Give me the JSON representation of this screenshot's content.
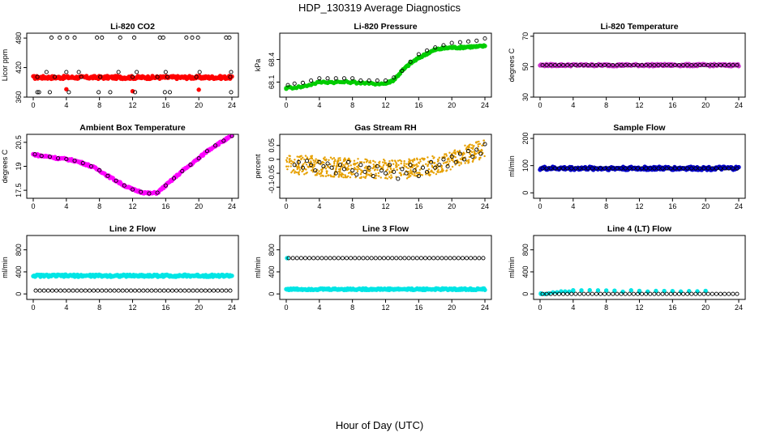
{
  "figure": {
    "title": "HDP_130319  Average Diagnostics",
    "xlabel": "Hour of Day (UTC)"
  },
  "chart_data": [
    {
      "type": "scatter",
      "title": "Li-820 CO2",
      "ylabel": "Licor ppm",
      "xlim": [
        0,
        24
      ],
      "ylim": [
        360,
        490
      ],
      "xticks": [
        0,
        4,
        8,
        12,
        16,
        20,
        24
      ],
      "yticks": [
        360,
        420,
        480
      ],
      "series": [
        {
          "color": "#ff0000",
          "marker": "filled",
          "band": [
            0,
            24,
            397,
            403
          ],
          "x": [
            4.0,
            12.0,
            20.0
          ],
          "y": [
            376,
            372,
            375
          ]
        },
        {
          "color": "#000000",
          "marker": "open",
          "x": [
            0.5,
            2.2,
            3.2,
            4.1,
            5.0,
            7.7,
            8.3,
            10.5,
            12.2,
            15.3,
            15.7,
            18.5,
            19.2,
            19.9,
            23.3,
            23.7,
            0.7,
            2.0,
            4.3,
            7.9,
            9.3,
            12.3,
            15.9,
            16.5,
            23.9,
            0.5,
            2.6,
            5.8,
            8.1,
            12.0,
            15.0,
            16.2,
            19.7,
            23.8,
            1.6,
            4.0,
            5.5,
            10.3,
            12.5,
            16.0,
            20.1,
            23.9
          ],
          "y": [
            370,
            481,
            481,
            481,
            481,
            481,
            481,
            481,
            481,
            481,
            481,
            481,
            481,
            481,
            481,
            481,
            370,
            370,
            370,
            370,
            370,
            370,
            370,
            370,
            370,
            401,
            401,
            401,
            401,
            401,
            401,
            401,
            401,
            401,
            411,
            411,
            411,
            411,
            411,
            411,
            411,
            411
          ]
        }
      ]
    },
    {
      "type": "scatter",
      "title": "Li-820 Pressure",
      "ylabel": "kPa",
      "xlim": [
        0,
        24
      ],
      "ylim": [
        67.9,
        68.75
      ],
      "xticks": [
        0,
        4,
        8,
        12,
        16,
        20,
        24
      ],
      "yticks": [
        68.1,
        68.4
      ],
      "series": [
        {
          "color": "#00cc00",
          "marker": "filled",
          "x": [
            0,
            2,
            4,
            6,
            8,
            10,
            12,
            13,
            14,
            15,
            16,
            17,
            18,
            19,
            20,
            21,
            22,
            23,
            24
          ],
          "y": [
            68.02,
            68.04,
            68.1,
            68.1,
            68.1,
            68.08,
            68.08,
            68.13,
            68.25,
            68.35,
            68.42,
            68.48,
            68.53,
            68.55,
            68.56,
            68.56,
            68.57,
            68.57,
            68.58
          ]
        },
        {
          "color": "#000000",
          "marker": "open",
          "x": [
            0.2,
            1,
            2,
            3,
            4,
            5,
            6,
            7,
            8,
            9,
            10,
            11,
            12,
            13,
            14,
            15,
            16,
            17,
            18,
            19,
            20,
            21,
            22,
            23,
            24
          ],
          "y": [
            68.06,
            68.08,
            68.09,
            68.12,
            68.15,
            68.15,
            68.15,
            68.15,
            68.15,
            68.12,
            68.12,
            68.12,
            68.12,
            68.16,
            68.25,
            68.37,
            68.47,
            68.52,
            68.56,
            68.59,
            68.62,
            68.63,
            68.64,
            68.65,
            68.68
          ]
        }
      ]
    },
    {
      "type": "scatter",
      "title": "Li-820 Temperature",
      "ylabel": "degrees C",
      "xlim": [
        0,
        24
      ],
      "ylim": [
        30,
        72
      ],
      "xticks": [
        0,
        4,
        8,
        12,
        16,
        20,
        24
      ],
      "yticks": [
        30,
        50,
        70
      ],
      "series": [
        {
          "color": "#cc33cc",
          "marker": "filled",
          "band": [
            0,
            24,
            50.3,
            51.7
          ],
          "x": [
            0.1
          ],
          "y": [
            51
          ]
        },
        {
          "color": "#000000",
          "marker": "open",
          "line_y": 51,
          "x0": 0.3,
          "x1": 24,
          "step": 0.5
        }
      ]
    },
    {
      "type": "scatter",
      "title": "Ambient Box Temperature",
      "ylabel": "degrees C",
      "xlim": [
        0,
        24
      ],
      "ylim": [
        17.0,
        21.0
      ],
      "xticks": [
        0,
        4,
        8,
        12,
        16,
        20,
        24
      ],
      "yticks": [
        17.5,
        19.0,
        20.5
      ],
      "series": [
        {
          "color": "#ff00ff",
          "marker": "filled",
          "x": [
            0,
            1,
            2,
            3,
            4,
            5,
            6,
            7,
            8,
            9,
            10,
            11,
            12,
            13,
            14,
            15,
            16,
            17,
            18,
            19,
            20,
            21,
            22,
            23,
            24
          ],
          "y": [
            19.75,
            19.65,
            19.6,
            19.5,
            19.45,
            19.35,
            19.2,
            19.0,
            18.75,
            18.4,
            18.1,
            17.8,
            17.55,
            17.4,
            17.3,
            17.35,
            17.8,
            18.25,
            18.7,
            19.1,
            19.5,
            19.95,
            20.3,
            20.6,
            20.9
          ]
        },
        {
          "color": "#000000",
          "marker": "open",
          "x": [
            0.2,
            1,
            2,
            3,
            4,
            5,
            6,
            7,
            8,
            9,
            10,
            11,
            12,
            13,
            14,
            15,
            16,
            17,
            18,
            19,
            20,
            21,
            22,
            23,
            24
          ],
          "y": [
            19.75,
            19.65,
            19.6,
            19.5,
            19.45,
            19.35,
            19.2,
            19.0,
            18.75,
            18.4,
            18.1,
            17.8,
            17.55,
            17.4,
            17.3,
            17.35,
            17.8,
            18.25,
            18.7,
            19.1,
            19.5,
            19.95,
            20.3,
            20.6,
            20.9
          ]
        }
      ]
    },
    {
      "type": "scatter",
      "title": "Gas Stream RH",
      "ylabel": "percent",
      "xlim": [
        0,
        24
      ],
      "ylim": [
        -0.14,
        0.09
      ],
      "xticks": [
        0,
        4,
        8,
        12,
        16,
        20,
        24
      ],
      "yticks": [
        -0.1,
        -0.05,
        0.0,
        0.05
      ],
      "series": [
        {
          "color": "#e6a000",
          "marker": "filled",
          "band_curve": true,
          "x": [
            0,
            2,
            4,
            6,
            8,
            10,
            12,
            14,
            16,
            18,
            20,
            22,
            24
          ],
          "y": [
            -0.02,
            -0.02,
            -0.025,
            -0.03,
            -0.03,
            -0.035,
            -0.035,
            -0.035,
            -0.03,
            -0.02,
            -0.005,
            0.02,
            0.04
          ],
          "spread": 0.035
        },
        {
          "color": "#000000",
          "marker": "open",
          "x": [
            1,
            1.5,
            2,
            2.5,
            3,
            3.5,
            4,
            4.5,
            5,
            5.5,
            6,
            6.5,
            7,
            7.5,
            8,
            8.5,
            9,
            9.5,
            10,
            10.5,
            11,
            11.5,
            12,
            12.5,
            13,
            13.5,
            14,
            14.5,
            15,
            15.5,
            16,
            16.5,
            17,
            17.5,
            18,
            18.5,
            19,
            19.5,
            20,
            20.5,
            21,
            21.5,
            22,
            22.5,
            23,
            23.5,
            24
          ],
          "y": [
            -0.02,
            -0.01,
            -0.03,
            -0.005,
            -0.02,
            -0.04,
            -0.01,
            -0.025,
            -0.015,
            -0.03,
            -0.05,
            -0.02,
            -0.035,
            -0.01,
            -0.04,
            -0.055,
            -0.02,
            -0.045,
            -0.03,
            -0.06,
            -0.025,
            -0.04,
            -0.05,
            -0.02,
            -0.045,
            -0.07,
            -0.035,
            -0.05,
            -0.02,
            -0.04,
            -0.06,
            -0.03,
            -0.045,
            -0.01,
            -0.03,
            -0.02,
            0.0,
            -0.025,
            0.01,
            -0.01,
            0.02,
            0.0,
            0.03,
            0.01,
            0.035,
            0.02,
            0.055
          ]
        }
      ]
    },
    {
      "type": "scatter",
      "title": "Sample Flow",
      "ylabel": "ml/min",
      "xlim": [
        0,
        24
      ],
      "ylim": [
        -20,
        215
      ],
      "xticks": [
        0,
        4,
        8,
        12,
        16,
        20,
        24
      ],
      "yticks": [
        0,
        100,
        200
      ],
      "series": [
        {
          "color": "#0000cc",
          "marker": "filled",
          "band": [
            0,
            24,
            84,
            96
          ],
          "x": [
            0.1
          ],
          "y": [
            90
          ]
        },
        {
          "color": "#000000",
          "marker": "open",
          "line_y": 90,
          "x0": 0.3,
          "x1": 24,
          "step": 0.5
        }
      ]
    },
    {
      "type": "scatter",
      "title": "Line 2 Flow",
      "ylabel": "ml/min",
      "xlim": [
        0,
        24
      ],
      "ylim": [
        -100,
        1060
      ],
      "xticks": [
        0,
        4,
        8,
        12,
        16,
        20,
        24
      ],
      "yticks": [
        0,
        400,
        800
      ],
      "series": [
        {
          "color": "#00e5e5",
          "marker": "filled",
          "band": [
            0,
            24,
            310,
            350
          ],
          "x": [
            0.1
          ],
          "y": [
            330
          ]
        },
        {
          "color": "#000000",
          "marker": "open",
          "line_y": 60,
          "x0": 0.3,
          "x1": 24,
          "step": 0.5
        }
      ]
    },
    {
      "type": "scatter",
      "title": "Line 3 Flow",
      "ylabel": "ml/min",
      "xlim": [
        0,
        24
      ],
      "ylim": [
        -100,
        1060
      ],
      "xticks": [
        0,
        4,
        8,
        12,
        16,
        20,
        24
      ],
      "yticks": [
        0,
        400,
        800
      ],
      "series": [
        {
          "color": "#00e5e5",
          "marker": "filled",
          "band": [
            0,
            24,
            70,
            100
          ],
          "x": [
            0.1
          ],
          "y": [
            650
          ]
        },
        {
          "color": "#000000",
          "marker": "open",
          "line_y": 650,
          "x0": 0.3,
          "x1": 24,
          "step": 0.5
        }
      ]
    },
    {
      "type": "scatter",
      "title": "Line 4 (LT) Flow",
      "ylabel": "ml/min",
      "xlim": [
        0,
        24
      ],
      "ylim": [
        -100,
        1060
      ],
      "xticks": [
        0,
        4,
        8,
        12,
        16,
        20,
        24
      ],
      "yticks": [
        0,
        400,
        800
      ],
      "series": [
        {
          "color": "#00e5e5",
          "marker": "filled",
          "x": [
            0.1,
            4.0,
            12.0,
            20.0
          ],
          "y": [
            0,
            55,
            55,
            55
          ]
        },
        {
          "color": "#000000",
          "marker": "open",
          "line_y": 0,
          "x0": 0.3,
          "x1": 24,
          "step": 0.5
        }
      ]
    }
  ]
}
